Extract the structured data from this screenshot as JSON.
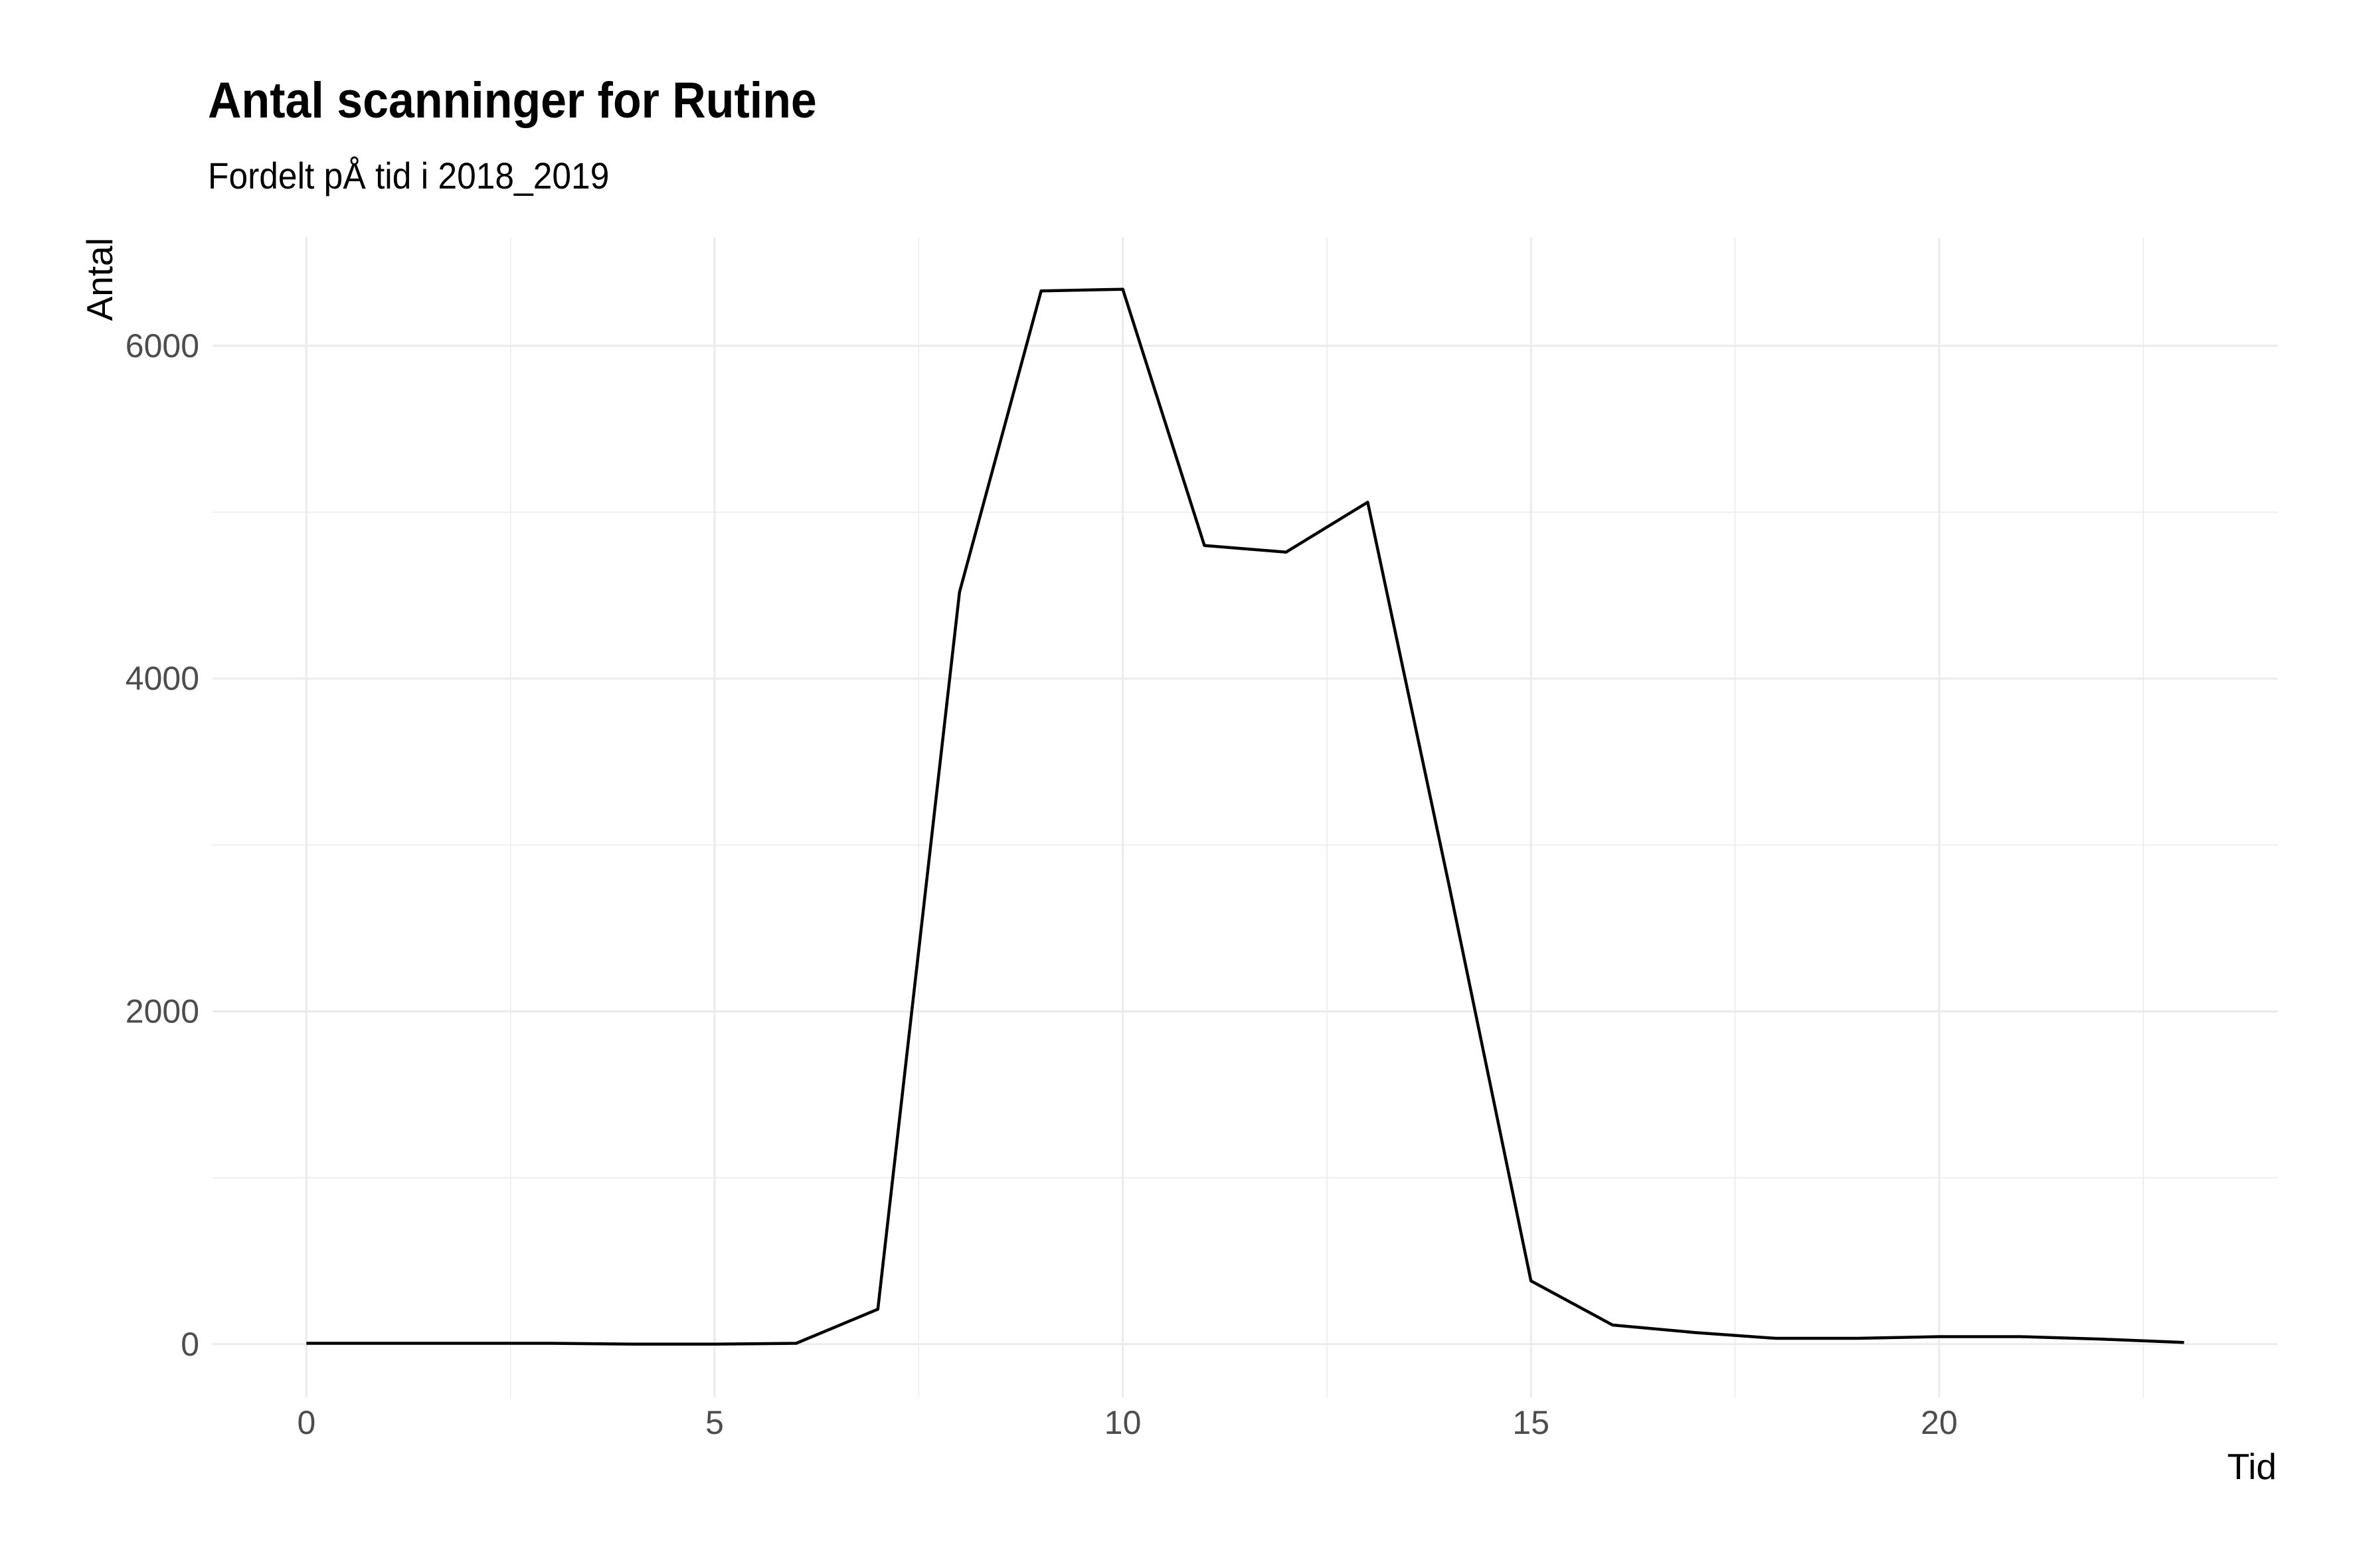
{
  "chart_data": {
    "type": "line",
    "title": "Antal scanninger for Rutine",
    "subtitle": "Fordelt pÅ tid i 2018_2019",
    "xlabel": "Tid",
    "ylabel": "Antal",
    "xlim": [
      -1.15,
      24.15
    ],
    "ylim": [
      -320,
      6650
    ],
    "x_ticks": [
      0,
      5,
      10,
      15,
      20
    ],
    "x_tick_labels": [
      "0",
      "5",
      "10",
      "15",
      "20"
    ],
    "x_minor_grid": [
      2.5,
      7.5,
      12.5,
      17.5,
      22.5
    ],
    "y_ticks": [
      0,
      2000,
      4000,
      6000
    ],
    "y_tick_labels": [
      "0",
      "2000",
      "4000",
      "6000"
    ],
    "y_minor_grid": [
      1000,
      3000,
      5000
    ],
    "grid": true,
    "line_color": "#000000",
    "grid_color": "#ebebeb",
    "series": [
      {
        "x": [
          0,
          1,
          2,
          3,
          4,
          5,
          6,
          7,
          8,
          9,
          10,
          11,
          12,
          13,
          14,
          15,
          16,
          17,
          18,
          19,
          20,
          21,
          22,
          23
        ],
        "values": [
          5,
          5,
          5,
          5,
          0,
          0,
          5,
          210,
          4520,
          6330,
          6340,
          4800,
          4760,
          5060,
          2750,
          380,
          115,
          70,
          35,
          35,
          45,
          45,
          30,
          10
        ]
      }
    ]
  }
}
